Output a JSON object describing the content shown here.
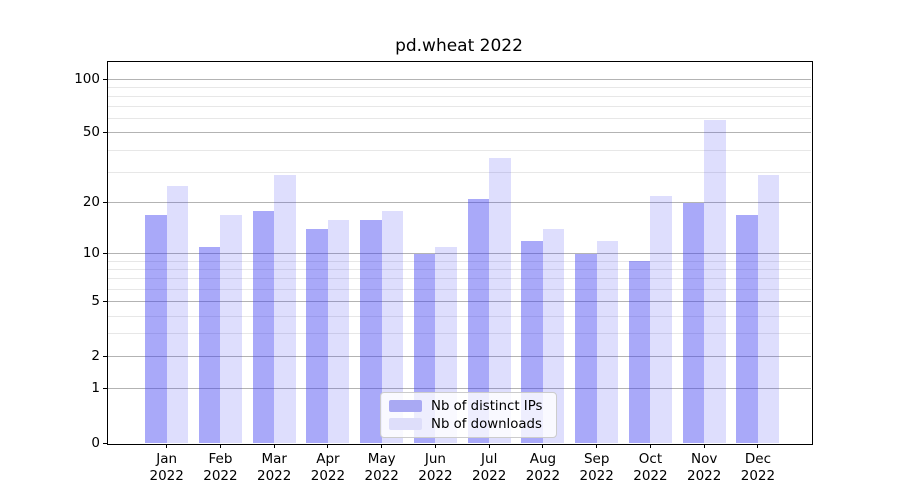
{
  "chart_data": {
    "type": "bar",
    "title": "pd.wheat 2022",
    "months": [
      "Jan",
      "Feb",
      "Mar",
      "Apr",
      "May",
      "Jun",
      "Jul",
      "Aug",
      "Sep",
      "Oct",
      "Nov",
      "Dec"
    ],
    "year_label": "2022",
    "series": [
      {
        "name": "Nb of distinct IPs",
        "bar_color": "rgba(60,60,242,0.44)",
        "swatch_color": "#a9a9f3",
        "values": [
          17,
          11,
          18,
          14,
          16,
          10,
          21,
          12,
          10,
          9,
          20,
          17
        ]
      },
      {
        "name": "Nb of downloads",
        "bar_color": "rgba(60,60,242,0.17)",
        "swatch_color": "#dedefa",
        "values": [
          25,
          17,
          29,
          16,
          18,
          11,
          36,
          14,
          12,
          22,
          59,
          29
        ]
      }
    ],
    "y_axis": {
      "scale": "log1p",
      "ticks": [
        0,
        1,
        2,
        5,
        10,
        20,
        50,
        100
      ],
      "minor_gridlines": [
        3,
        4,
        6,
        7,
        8,
        9,
        30,
        40,
        60,
        70,
        80,
        90
      ],
      "ylim": [
        0,
        124
      ]
    },
    "grid": true,
    "legend_position": "lower center",
    "colors": {
      "major_gridline": "#b3b3b3",
      "minor_gridline": "#e7e7e7",
      "axis": "#000000",
      "background": "#ffffff"
    }
  }
}
